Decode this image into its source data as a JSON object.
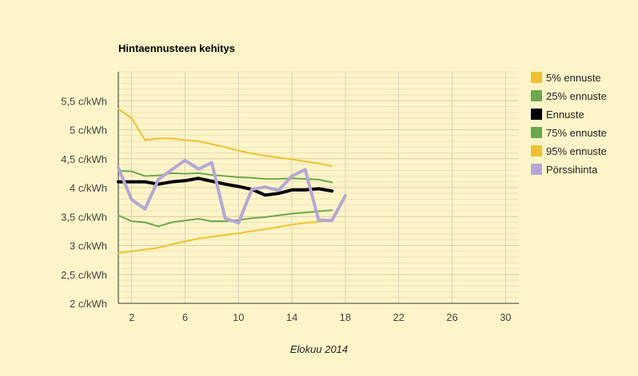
{
  "chart_data": {
    "type": "line",
    "title": "Hintaennusteen kehitys",
    "xlabel": "Elokuu 2014",
    "ylabel": "",
    "xlim": [
      1,
      31
    ],
    "ylim": [
      2,
      6
    ],
    "x_ticks": [
      2,
      6,
      10,
      14,
      18,
      22,
      26,
      30
    ],
    "x_tick_labels": [
      "2",
      "6",
      "10",
      "14",
      "18",
      "22",
      "26",
      "30"
    ],
    "y_ticks": [
      2,
      2.5,
      3,
      3.5,
      4,
      4.5,
      5,
      5.5
    ],
    "y_tick_labels": [
      "2 c/kWh",
      "2,5 c/kWh",
      "3 c/kWh",
      "3,5 c/kWh",
      "4 c/kWh",
      "4,5 c/kWh",
      "5 c/kWh",
      "5,5 c/kWh"
    ],
    "grid": true,
    "legend_position": "right",
    "series": [
      {
        "name": "5% ennuste",
        "color": "#f0c030",
        "width": 2,
        "x": [
          1,
          2,
          3,
          4,
          5,
          6,
          7,
          8,
          9,
          10,
          11,
          12,
          13,
          14,
          15,
          16,
          17
        ],
        "y": [
          2.87,
          2.9,
          2.93,
          2.96,
          3.02,
          3.07,
          3.12,
          3.15,
          3.18,
          3.21,
          3.25,
          3.28,
          3.32,
          3.36,
          3.39,
          3.41,
          3.44
        ]
      },
      {
        "name": "25% ennuste",
        "color": "#6aa84f",
        "width": 2,
        "x": [
          1,
          2,
          3,
          4,
          5,
          6,
          7,
          8,
          9,
          10,
          11,
          12,
          13,
          14,
          15,
          16,
          17
        ],
        "y": [
          3.52,
          3.42,
          3.4,
          3.33,
          3.4,
          3.43,
          3.46,
          3.42,
          3.42,
          3.44,
          3.47,
          3.49,
          3.52,
          3.55,
          3.57,
          3.59,
          3.61
        ]
      },
      {
        "name": "Ennuste",
        "color": "#000000",
        "width": 4,
        "x": [
          1,
          2,
          3,
          4,
          5,
          6,
          7,
          8,
          9,
          10,
          11,
          12,
          13,
          14,
          15,
          16,
          17
        ],
        "y": [
          4.1,
          4.1,
          4.1,
          4.06,
          4.1,
          4.12,
          4.16,
          4.11,
          4.06,
          4.02,
          3.97,
          3.87,
          3.9,
          3.96,
          3.96,
          3.98,
          3.94
        ]
      },
      {
        "name": "75% ennuste",
        "color": "#6aa84f",
        "width": 2,
        "x": [
          1,
          2,
          3,
          4,
          5,
          6,
          7,
          8,
          9,
          10,
          11,
          12,
          13,
          14,
          15,
          16,
          17
        ],
        "y": [
          4.29,
          4.28,
          4.2,
          4.21,
          4.25,
          4.24,
          4.25,
          4.22,
          4.2,
          4.18,
          4.17,
          4.15,
          4.15,
          4.16,
          4.15,
          4.14,
          4.09
        ]
      },
      {
        "name": "95% ennuste",
        "color": "#f0c030",
        "width": 2,
        "x": [
          1,
          2,
          3,
          4,
          5,
          6,
          7,
          8,
          9,
          10,
          11,
          12,
          13,
          14,
          15,
          16,
          17
        ],
        "y": [
          5.36,
          5.2,
          4.82,
          4.85,
          4.85,
          4.82,
          4.8,
          4.75,
          4.7,
          4.64,
          4.59,
          4.55,
          4.52,
          4.49,
          4.45,
          4.42,
          4.37
        ]
      },
      {
        "name": "Pörssihinta",
        "color": "#b4a7d6",
        "width": 4,
        "x": [
          1,
          2,
          3,
          4,
          5,
          6,
          7,
          8,
          9,
          10,
          11,
          12,
          13,
          14,
          15,
          16,
          17,
          18
        ],
        "y": [
          4.34,
          3.79,
          3.63,
          4.14,
          4.31,
          4.47,
          4.32,
          4.43,
          3.47,
          3.39,
          3.97,
          4.01,
          3.95,
          4.2,
          4.31,
          3.44,
          3.43,
          3.86
        ]
      }
    ]
  }
}
